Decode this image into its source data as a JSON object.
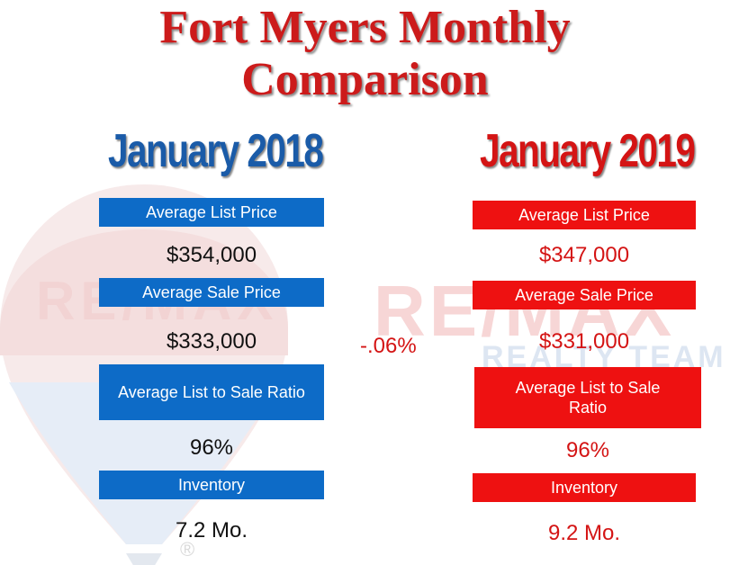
{
  "title": {
    "line1": "Fort Myers Monthly",
    "line2": "Comparison"
  },
  "left": {
    "period": "January 2018",
    "list_price_label": "Average List Price",
    "list_price": "$354,000",
    "sale_price_label": "Average Sale Price",
    "sale_price": "$333,000",
    "ratio_label": "Average List to Sale Ratio",
    "ratio": "96%",
    "inventory_label": "Inventory",
    "inventory": "7.2 Mo."
  },
  "right": {
    "period": "January 2019",
    "list_price_label": "Average List Price",
    "list_price": "$347,000",
    "sale_price_label": "Average Sale Price",
    "sale_price": "$331,000",
    "ratio_label": "Average List to Sale Ratio",
    "ratio": "96%",
    "inventory_label": "Inventory",
    "inventory": "9.2 Mo."
  },
  "change": "-.06%",
  "watermark": {
    "brand": "RE/MAX",
    "team": "REALTY TEAM",
    "registered": "®"
  },
  "colors": {
    "title_red": "#cc1b1b",
    "blue": "#0d6bc7",
    "red": "#ee1111",
    "year_blue": "#1a5ba8"
  }
}
